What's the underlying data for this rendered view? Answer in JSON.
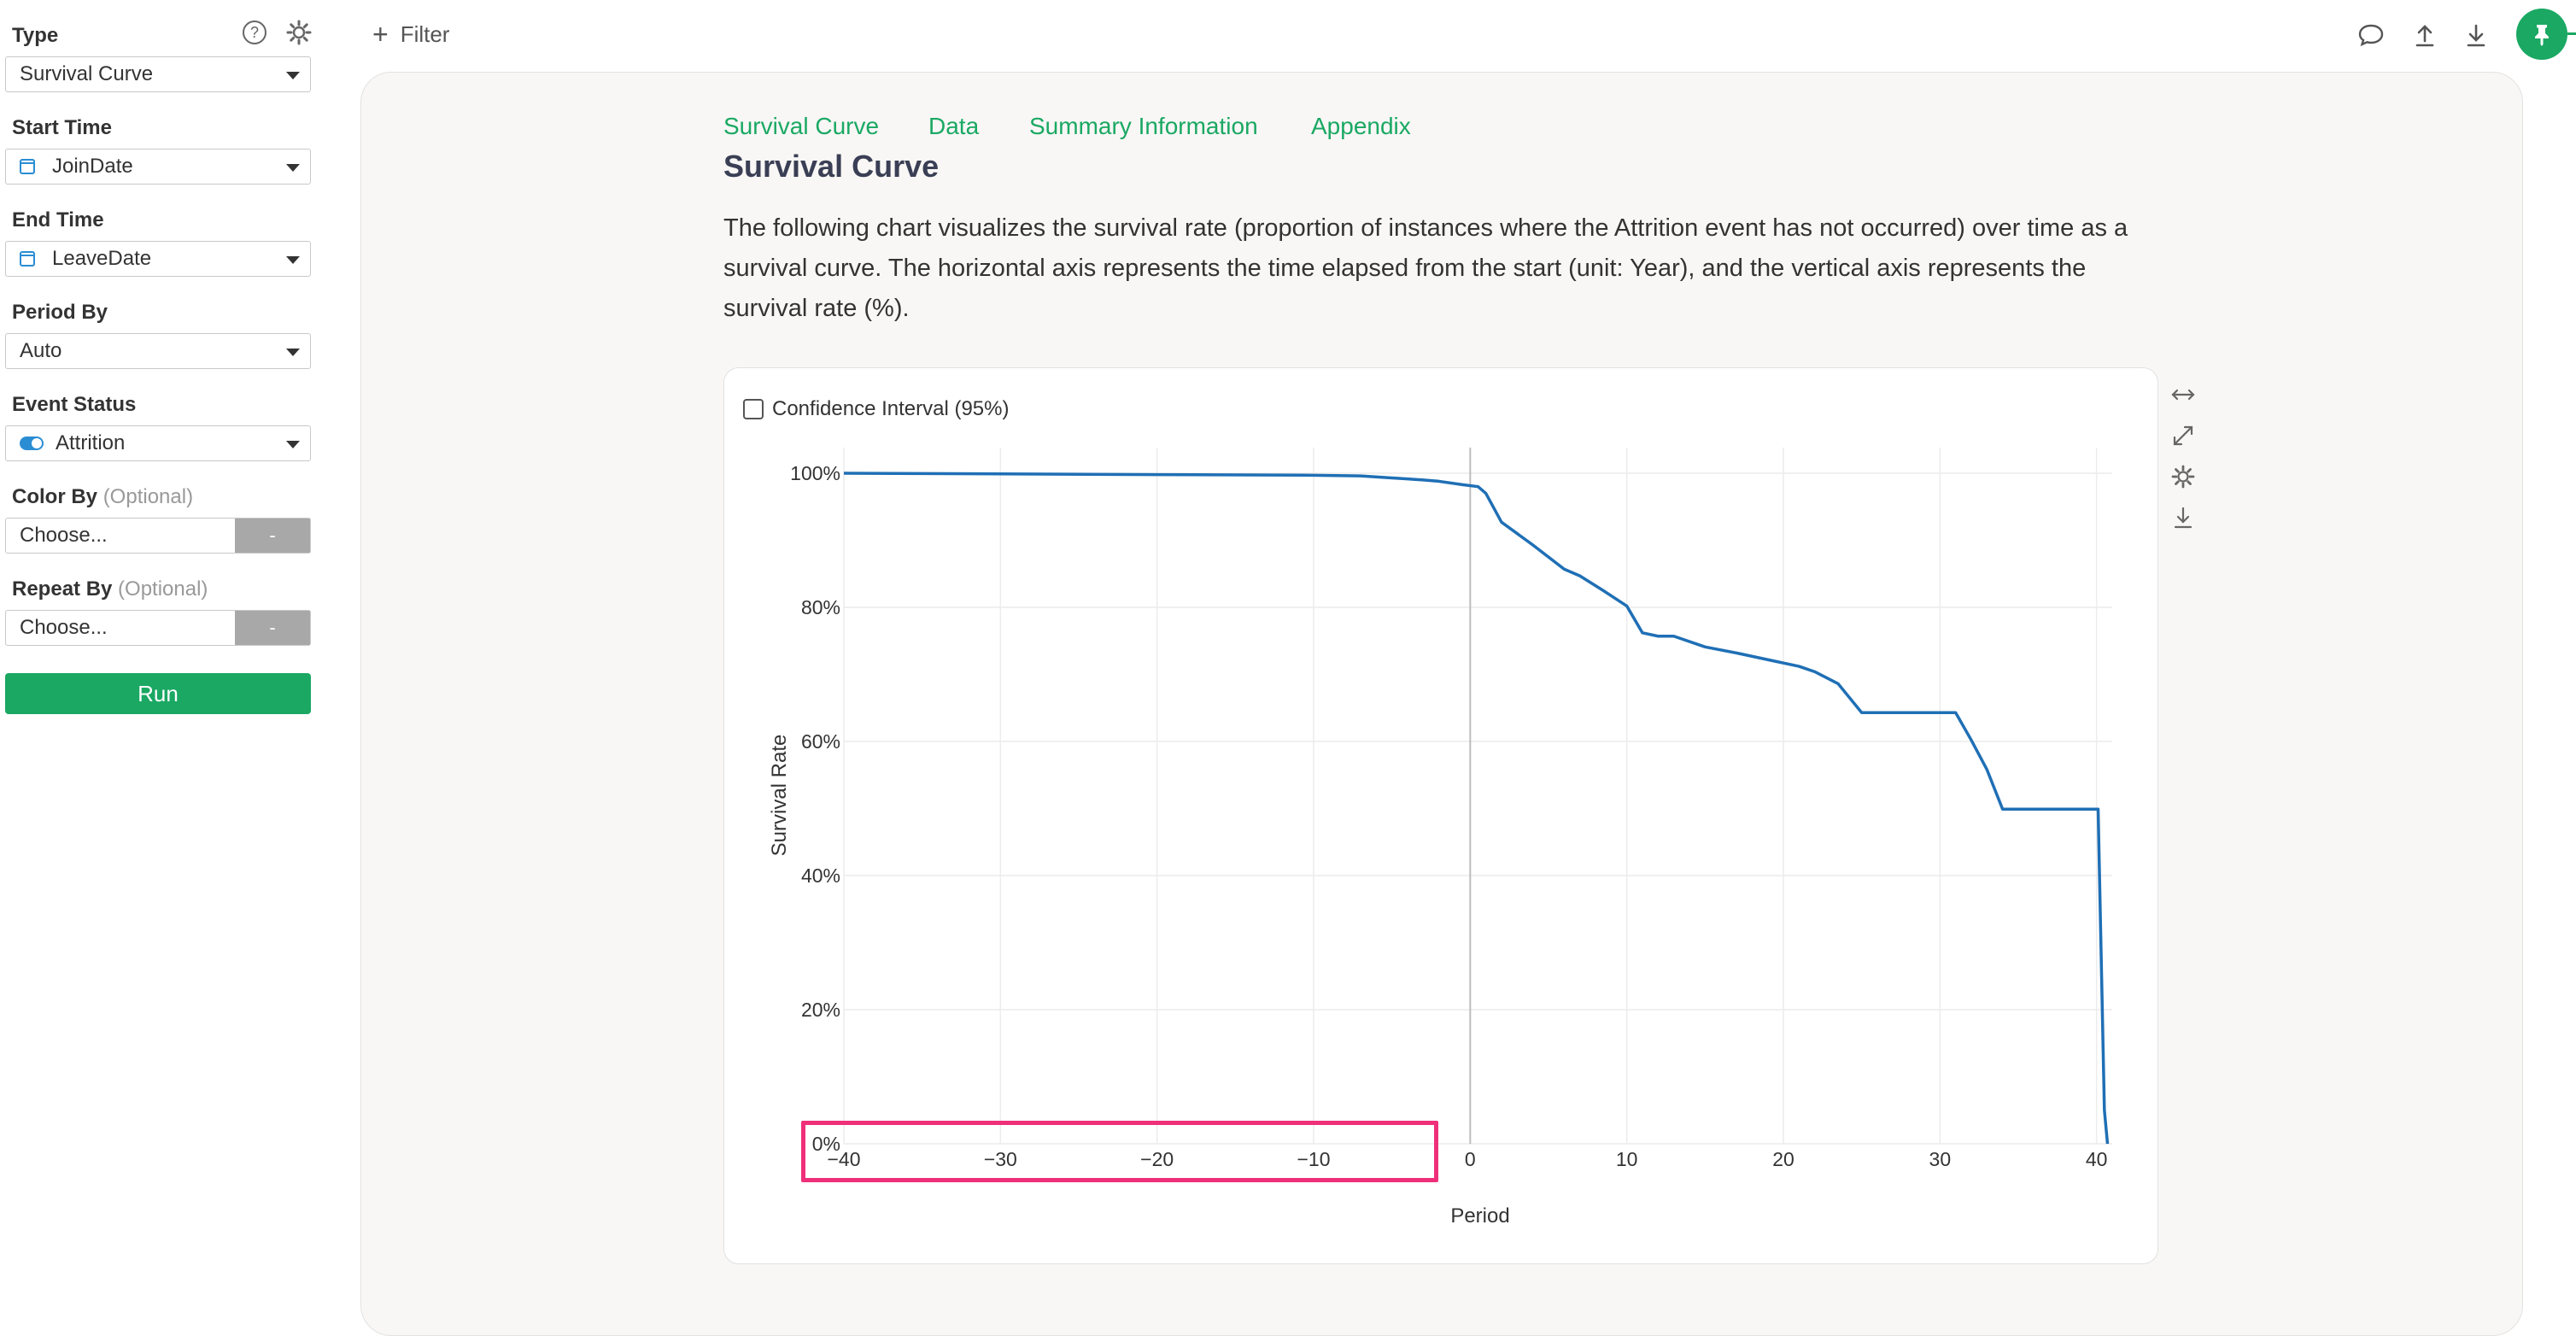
{
  "sidebar": {
    "type_label": "Type",
    "type_value": "Survival Curve",
    "start_time_label": "Start Time",
    "start_time_value": "JoinDate",
    "end_time_label": "End Time",
    "end_time_value": "LeaveDate",
    "period_by_label": "Period By",
    "period_by_value": "Auto",
    "event_status_label": "Event Status",
    "event_status_value": "Attrition",
    "color_by_label": "Color By",
    "color_by_optional": "(Optional)",
    "color_by_value": "Choose...",
    "repeat_by_label": "Repeat By",
    "repeat_by_optional": "(Optional)",
    "repeat_by_value": "Choose...",
    "dash_label": "-",
    "run_label": "Run",
    "help_icon": "?",
    "icons": [
      "help-icon",
      "gear-icon",
      "calendar-icon",
      "toggle-icon",
      "caret-down-icon"
    ]
  },
  "topbar": {
    "filter_label": "Filter",
    "icons": [
      "comment-icon",
      "upload-icon",
      "download-icon",
      "pin-icon"
    ]
  },
  "main": {
    "tabs": [
      {
        "label": "Survival Curve"
      },
      {
        "label": "Data"
      },
      {
        "label": "Summary Information"
      },
      {
        "label": "Appendix"
      }
    ],
    "title": "Survival Curve",
    "description": "The following chart visualizes the survival rate (proportion of instances where the Attrition event has not occurred) over time as a survival curve. The horizontal axis represents the time elapsed from the start (unit: Year), and the vertical axis represents the survival rate (%).",
    "confidence_interval_label": "Confidence Interval (95%)",
    "chart_tools": [
      "expand-horizontal-icon",
      "fullscreen-icon",
      "gear-icon",
      "download-icon"
    ]
  },
  "colors": {
    "accent": "#1aa863",
    "line": "#1f6fb5",
    "highlight": "#ef2f79"
  },
  "chart_data": {
    "type": "line",
    "xlabel": "Period",
    "ylabel": "Survival Rate",
    "xlim": [
      -40,
      41
    ],
    "ylim": [
      0,
      100
    ],
    "x_ticks": [
      -40,
      -30,
      -20,
      -10,
      0,
      10,
      20,
      30,
      40
    ],
    "x_tick_labels": [
      "−40",
      "−30",
      "−20",
      "−10",
      "0",
      "10",
      "20",
      "30",
      "40"
    ],
    "y_ticks": [
      0,
      20,
      40,
      60,
      80,
      100
    ],
    "y_tick_labels": [
      "0%",
      "20%",
      "40%",
      "60%",
      "80%",
      "100%"
    ],
    "grid": true,
    "series": [
      {
        "x": [
          -40,
          -30,
          -20,
          -10,
          -7,
          -5,
          -3,
          -2,
          -0.5,
          0.5,
          1,
          2,
          4,
          6,
          7,
          8.5,
          10,
          11,
          12,
          13,
          15,
          17,
          19,
          21,
          22,
          23.5,
          25,
          27,
          29,
          31,
          32,
          33,
          34,
          36,
          38,
          40.1,
          40.5,
          40.7
        ],
        "y": [
          100,
          99.9,
          99.8,
          99.7,
          99.6,
          99.3,
          99,
          98.8,
          98.3,
          98,
          97,
          92.7,
          89.3,
          85.7,
          84.7,
          82.5,
          80.2,
          76.2,
          75.7,
          75.7,
          74.1,
          73.2,
          72.2,
          71.2,
          70.4,
          68.6,
          64.3,
          64.3,
          64.3,
          64.3,
          60.2,
          55.8,
          49.9,
          49.9,
          49.9,
          49.9,
          5,
          0
        ]
      }
    ]
  }
}
